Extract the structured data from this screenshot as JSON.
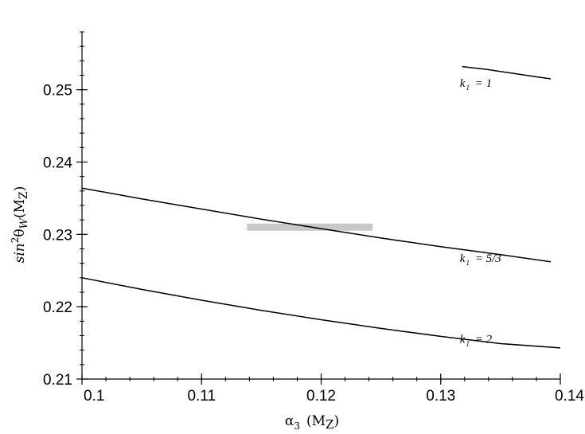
{
  "chart_data": {
    "type": "line",
    "title": "",
    "xlabel": {
      "base": "α",
      "sub": "3",
      "arg": "(M",
      "argsub": "Z",
      "close": ")"
    },
    "ylabel": {
      "base": "sin",
      "sup": "2",
      "theta": "θ",
      "thetasub": "W",
      "arg": "(M",
      "argsub": "Z",
      "close": ")"
    },
    "xlim": [
      0.1,
      0.14
    ],
    "ylim": [
      0.21,
      0.258
    ],
    "x_ticks": [
      {
        "value": 0.1,
        "label": "0.1"
      },
      {
        "value": 0.11,
        "label": "0.11"
      },
      {
        "value": 0.12,
        "label": "0.12"
      },
      {
        "value": 0.13,
        "label": "0.13"
      },
      {
        "value": 0.14,
        "label": "0.14"
      }
    ],
    "y_ticks": [
      {
        "value": 0.21,
        "label": "0.21"
      },
      {
        "value": 0.22,
        "label": "0.22"
      },
      {
        "value": 0.23,
        "label": "0.23"
      },
      {
        "value": 0.24,
        "label": "0.24"
      },
      {
        "value": 0.25,
        "label": "0.25"
      }
    ],
    "series": [
      {
        "label": "k",
        "sub": "1",
        "eq": " = 1",
        "x": [
          0.1318,
          0.1339,
          0.1359,
          0.1379,
          0.1392
        ],
        "y": [
          0.2532,
          0.2528,
          0.2523,
          0.2518,
          0.2515
        ],
        "label_at": [
          0.1316,
          0.2504
        ]
      },
      {
        "label": "k",
        "sub": "1",
        "eq": " = 5/3",
        "x": [
          0.1,
          0.105,
          0.11,
          0.115,
          0.12,
          0.125,
          0.13,
          0.135,
          0.1392
        ],
        "y": [
          0.2364,
          0.2349,
          0.2335,
          0.2321,
          0.2308,
          0.2295,
          0.2283,
          0.2272,
          0.2262
        ],
        "label_at": [
          0.1316,
          0.2262
        ]
      },
      {
        "label": "k",
        "sub": "1",
        "eq": " = 2",
        "x": [
          0.1,
          0.105,
          0.11,
          0.115,
          0.12,
          0.125,
          0.13,
          0.135,
          0.14
        ],
        "y": [
          0.224,
          0.2224,
          0.2209,
          0.2195,
          0.2182,
          0.217,
          0.2159,
          0.2149,
          0.2143
        ],
        "label_at": [
          0.1316,
          0.215
        ]
      }
    ],
    "band": {
      "x": [
        0.1138,
        0.1243
      ],
      "y": 0.231
    },
    "colors": {
      "curve": "#000000",
      "band": "#c8c8c8",
      "axis": "#000000"
    }
  }
}
